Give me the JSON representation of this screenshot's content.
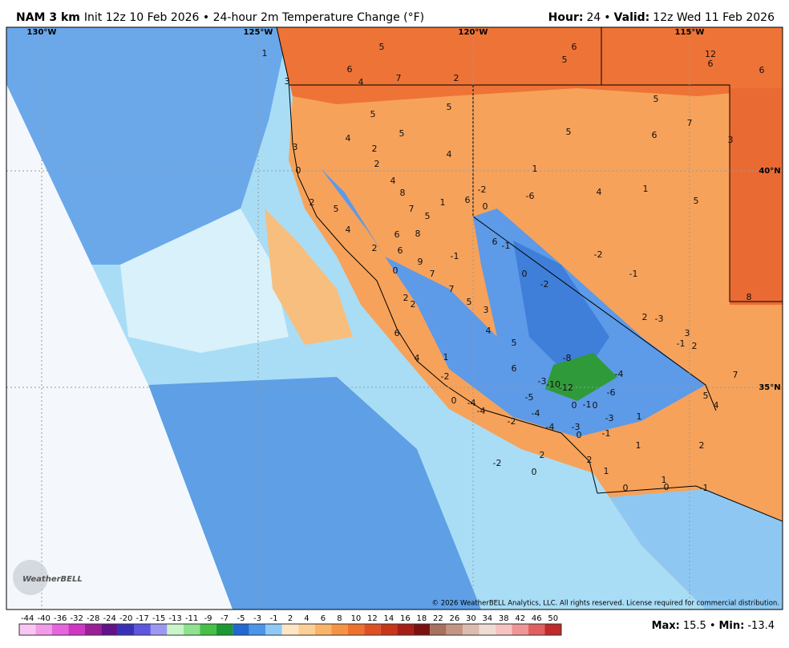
{
  "header": {
    "model": "NAM 3 km",
    "description": "Init 12z 10 Feb 2026 • 24-hour 2m Temperature Change (°F)",
    "hour_label": "Hour:",
    "hour": 24,
    "separator": "•",
    "valid_label": "Valid:",
    "valid": "12z Wed 11 Feb 2026"
  },
  "map": {
    "lon_labels": [
      "130°W",
      "125°W",
      "120°W",
      "115°W"
    ],
    "lat_labels": [
      "40°N",
      "35°N"
    ],
    "values": [
      1,
      5,
      6,
      5,
      12,
      6,
      6,
      6,
      4,
      7,
      3,
      2,
      5,
      5,
      5,
      7,
      5,
      6,
      3,
      4,
      5,
      2,
      3,
      4,
      2,
      0,
      1,
      4,
      -2,
      -6,
      4,
      1,
      8,
      1,
      6,
      0,
      2,
      5,
      7,
      5,
      5,
      4,
      6,
      8,
      2,
      6,
      6,
      -1,
      -2,
      -1,
      9,
      0,
      7,
      0,
      -2,
      -1,
      7,
      2,
      2,
      5,
      3,
      8,
      2,
      -3,
      4,
      6,
      3,
      -1,
      2,
      5,
      4,
      1,
      -8,
      6,
      -4,
      -2,
      7,
      -3,
      -10,
      -12,
      -6,
      -5,
      5,
      0,
      -4,
      -4,
      0,
      -1,
      0,
      4,
      -4,
      -3,
      1,
      -2,
      -4,
      -3,
      0,
      -1,
      1,
      2,
      2,
      2,
      -2,
      1,
      0,
      1,
      0,
      0,
      -1
    ],
    "copyright": "© 2026 WeatherBELL Analytics, LLC. All rights reserved. License required for commercial distribution.",
    "logo": "WeatherBELL"
  },
  "legend": {
    "ticks": [
      -44,
      -40,
      -36,
      -32,
      -28,
      -24,
      -20,
      -17,
      -15,
      -13,
      -11,
      -9,
      -7,
      -5,
      -3,
      -1,
      2,
      4,
      6,
      8,
      10,
      12,
      14,
      16,
      18,
      22,
      26,
      30,
      34,
      38,
      42,
      46,
      50
    ],
    "colors": [
      "#f9c6f3",
      "#f29be9",
      "#e765dc",
      "#cf36c4",
      "#9a1f96",
      "#62138a",
      "#3a30b8",
      "#5c56e0",
      "#9c98f2",
      "#c9f5c9",
      "#8fe28f",
      "#46c046",
      "#1a9a30",
      "#2168d0",
      "#4b95ea",
      "#8fcaf6",
      "#fde6c4",
      "#fccf95",
      "#f9b46a",
      "#f59445",
      "#ee722d",
      "#df5020",
      "#c8361a",
      "#a71e16",
      "#7c1210",
      "#a8705e",
      "#c39684",
      "#dbbcaf",
      "#f1dcd4",
      "#f7c2c2",
      "#ef9595",
      "#e06060",
      "#c02a2a"
    ]
  },
  "stats": {
    "max_label": "Max:",
    "max": 15.5,
    "min_label": "Min:",
    "min": -13.4
  }
}
